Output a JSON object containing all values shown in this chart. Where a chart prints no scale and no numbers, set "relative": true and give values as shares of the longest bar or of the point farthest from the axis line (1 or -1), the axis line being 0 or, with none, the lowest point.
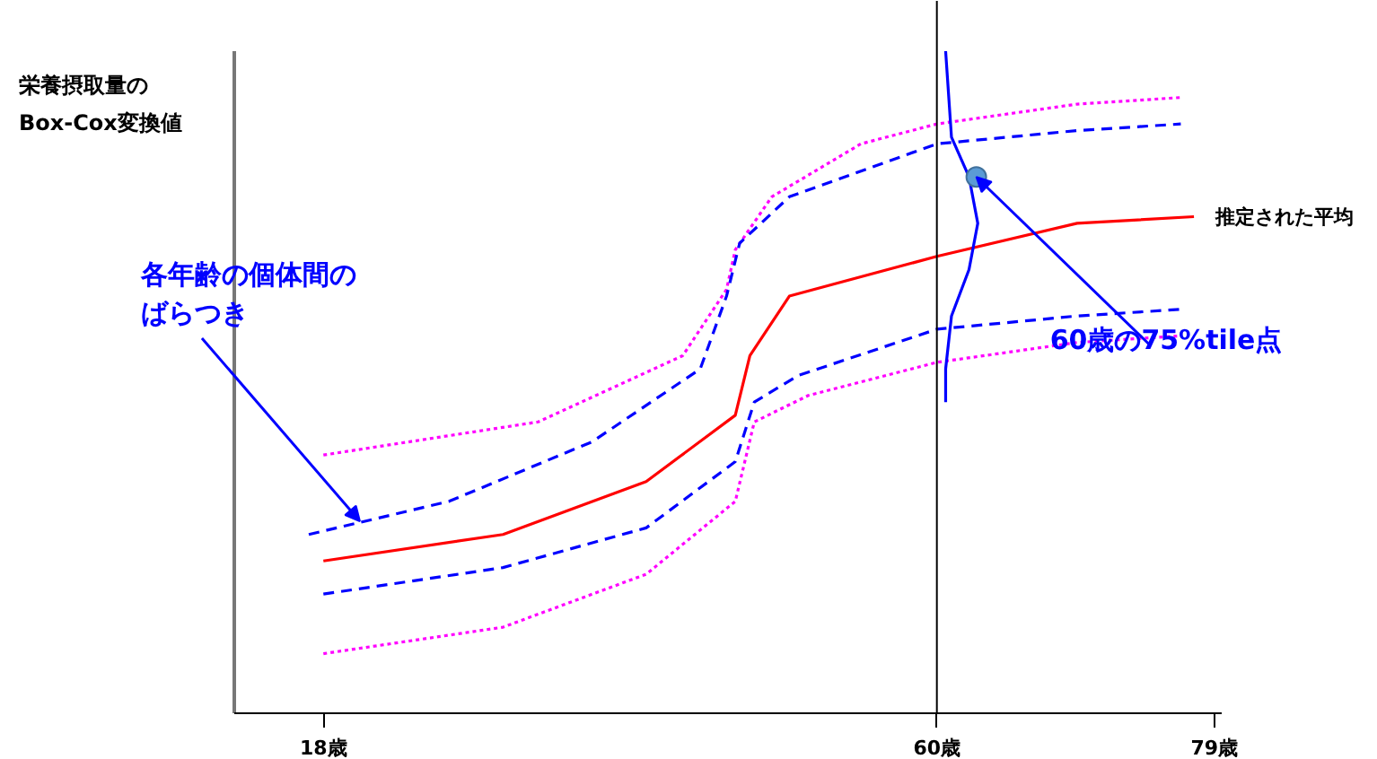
{
  "chart_data": {
    "type": "line",
    "relative": true,
    "ylabel": "栄養摂取量のBox-Cox変換値",
    "xlim": [
      11.9,
      79.5
    ],
    "xticks": [
      {
        "value": 18,
        "label": "18歳"
      },
      {
        "value": 60,
        "label": "60歳"
      },
      {
        "value": 79,
        "label": "79歳"
      }
    ],
    "grid": false,
    "ref_lines": [
      {
        "axis": "x",
        "value": 60,
        "color": "#000000"
      }
    ],
    "series": [
      {
        "color": "#ff00ff",
        "line_style": "dotted",
        "x": [
          18,
          32.7,
          42.6,
          45.6,
          46.2,
          48.7,
          54.8,
          60,
          69.6,
          76.7
        ],
        "values": [
          0.39,
          0.44,
          0.54,
          0.64,
          0.7,
          0.78,
          0.86,
          0.89,
          0.92,
          0.93
        ]
      },
      {
        "color": "#0000ff",
        "line_style": "dashed",
        "x": [
          17,
          26.6,
          36.4,
          43.8,
          45.6,
          46.5,
          49.9,
          60,
          69.6,
          76.7
        ],
        "values": [
          0.27,
          0.32,
          0.41,
          0.52,
          0.63,
          0.71,
          0.78,
          0.86,
          0.88,
          0.89
        ]
      },
      {
        "color": "#ff0000",
        "line_style": "solid",
        "x": [
          18,
          30.3,
          40.1,
          46.2,
          47.2,
          49.9,
          60,
          69.6,
          77.6
        ],
        "values": [
          0.23,
          0.27,
          0.35,
          0.45,
          0.54,
          0.63,
          0.69,
          0.74,
          0.75
        ]
      },
      {
        "color": "#0000ff",
        "line_style": "dashed",
        "x": [
          18,
          30.3,
          40.1,
          46.2,
          47.5,
          50.5,
          60,
          69.6,
          76.7
        ],
        "values": [
          0.18,
          0.22,
          0.28,
          0.38,
          0.47,
          0.51,
          0.58,
          0.6,
          0.61
        ]
      },
      {
        "color": "#ff00ff",
        "line_style": "dotted",
        "x": [
          18,
          30.3,
          40.1,
          46.2,
          47.5,
          51.2,
          60,
          69.6,
          76.7
        ],
        "values": [
          0.09,
          0.13,
          0.21,
          0.32,
          0.44,
          0.48,
          0.53,
          0.56,
          0.57
        ]
      },
      {
        "color": "#0000ff",
        "line_style": "solid",
        "x": [
          60.6,
          61.0,
          62.2,
          62.8,
          62.2,
          61.0,
          60.6,
          60.6
        ],
        "values": [
          1.0,
          0.87,
          0.81,
          0.74,
          0.67,
          0.6,
          0.52,
          0.47
        ]
      },
      {
        "type": "scatter",
        "color": "#5b9bd5",
        "marker": "circle",
        "x": [
          62.7
        ],
        "values": [
          0.81
        ]
      }
    ],
    "annotations": [
      {
        "text": "各年齢の個体間のばらつき",
        "x": 20.5,
        "y": 0.29
      },
      {
        "text": "60歳の75%tile点",
        "x": 62.7,
        "y": 0.81
      },
      {
        "text": "推定された平均",
        "x": 77.6,
        "y": 0.75
      }
    ]
  }
}
